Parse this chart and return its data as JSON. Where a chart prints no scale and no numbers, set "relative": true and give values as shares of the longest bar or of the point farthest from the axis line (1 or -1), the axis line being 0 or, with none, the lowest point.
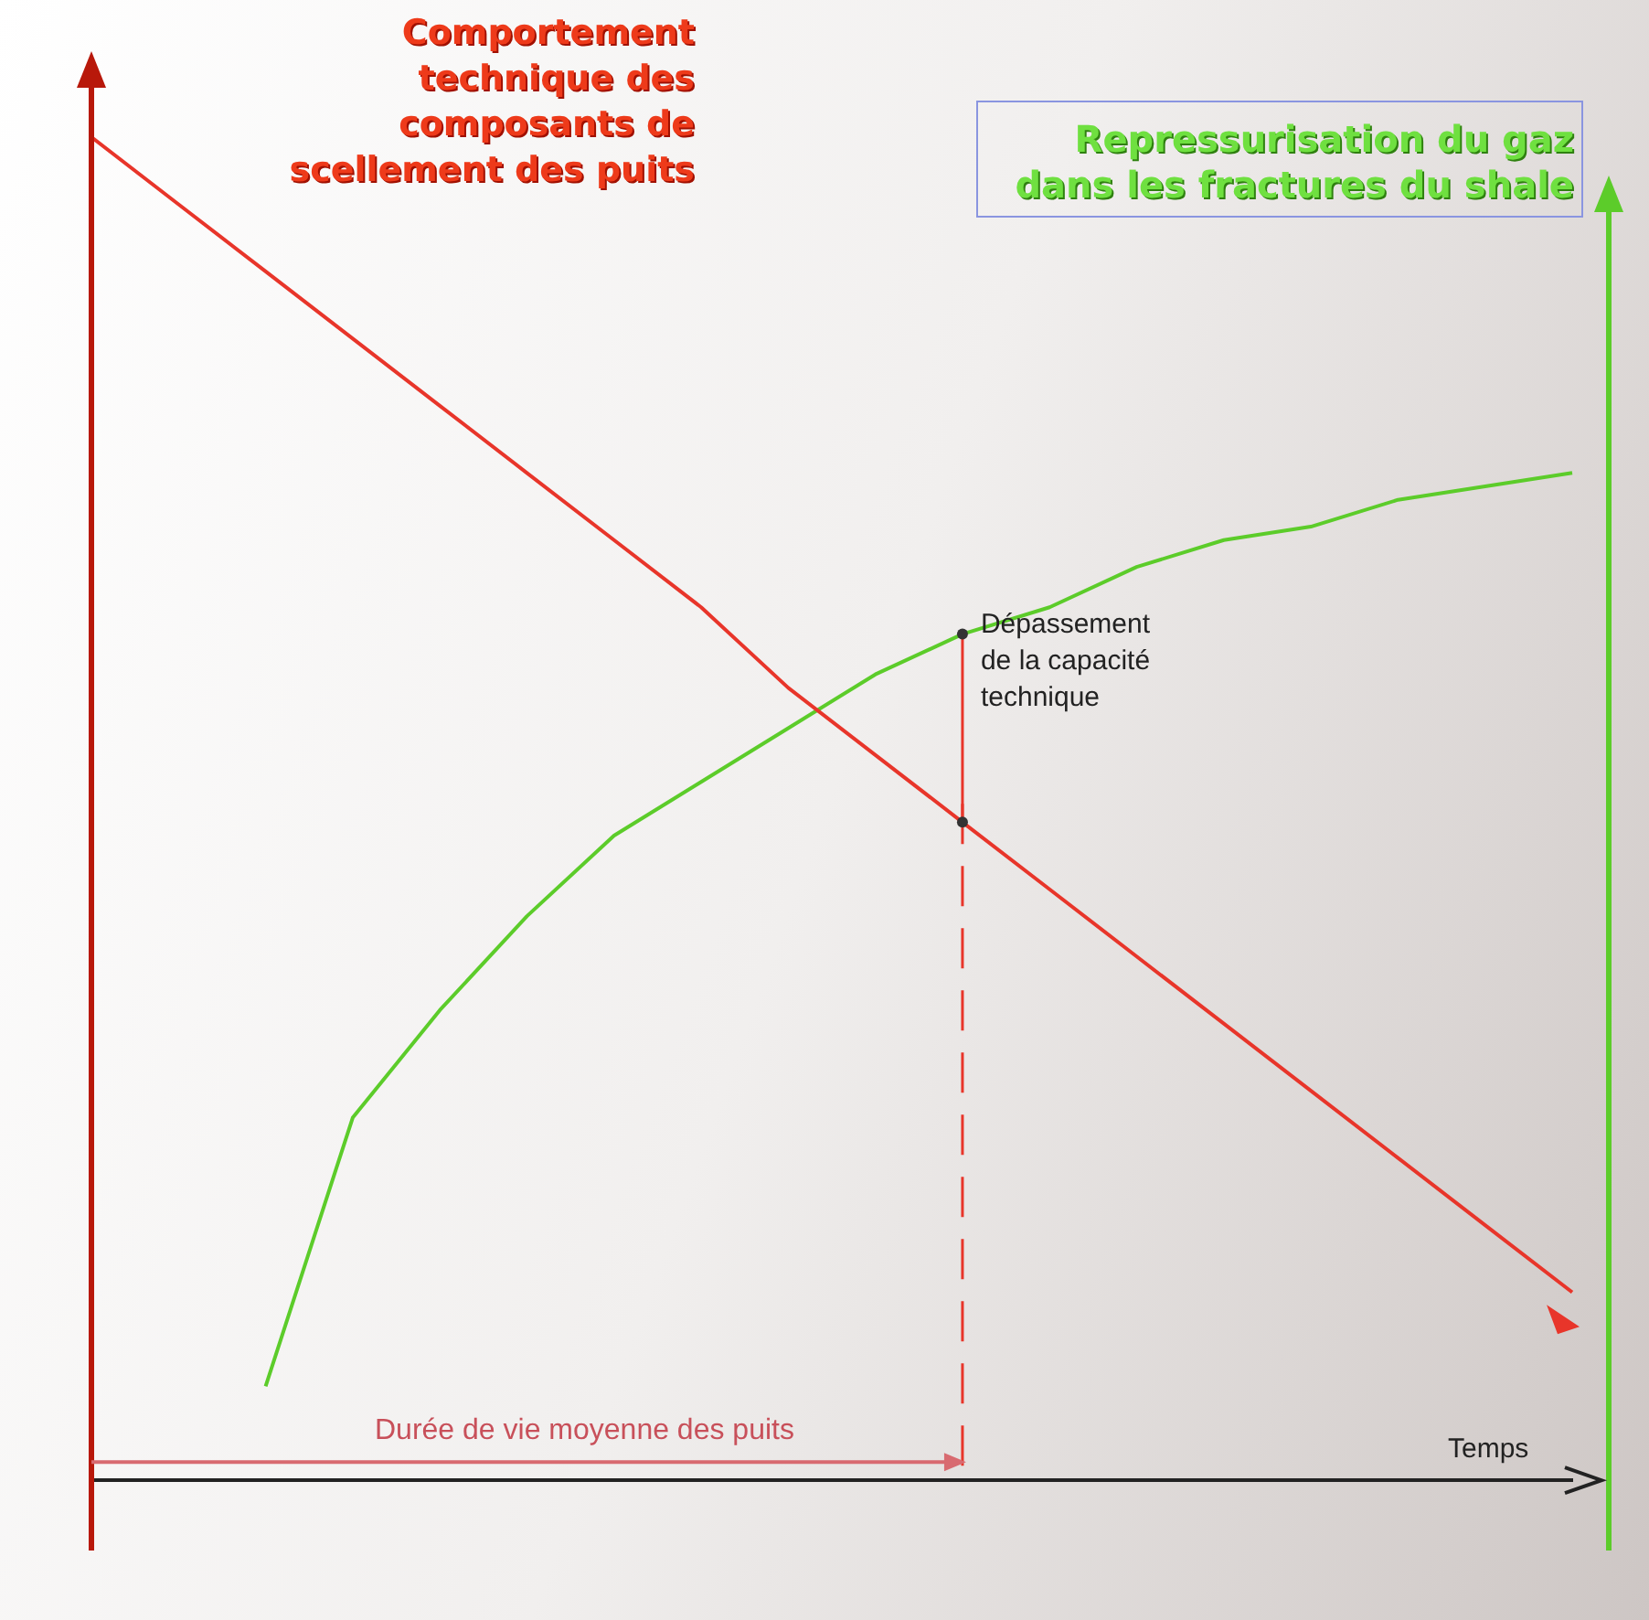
{
  "chart_data": {
    "type": "line",
    "relative": true,
    "ylabel": "Comportement technique des composants de scellement des puits",
    "y2label": "Repressurisation du gaz dans les fractures du shale",
    "xlabel": "Temps",
    "annotations": [
      "Dépassement de la capacité technique",
      "Durée de vie moyenne des puits"
    ],
    "categories": [
      null,
      null,
      null,
      null,
      null,
      null,
      null,
      null,
      null,
      null,
      null,
      null,
      null,
      null,
      null,
      null,
      null,
      null
    ],
    "series": [
      {
        "color": "#e8352a",
        "values": [
          1,
          0.95,
          0.9,
          0.85,
          0.8,
          0.75,
          0.7,
          0.65,
          0.59,
          0.54,
          0.49,
          0.44,
          0.39,
          0.34,
          0.29,
          0.24,
          0.19,
          0.14
        ]
      },
      {
        "color": "#5ccc2a",
        "values": [
          null,
          null,
          0.07,
          0.27,
          0.35,
          0.42,
          0.48,
          0.52,
          0.56,
          0.6,
          0.63,
          0.65,
          0.68,
          0.7,
          0.71,
          0.73,
          0.74,
          0.75
        ]
      }
    ],
    "grid": false,
    "legend": false,
    "marker": "none",
    "line_style": "solid"
  }
}
